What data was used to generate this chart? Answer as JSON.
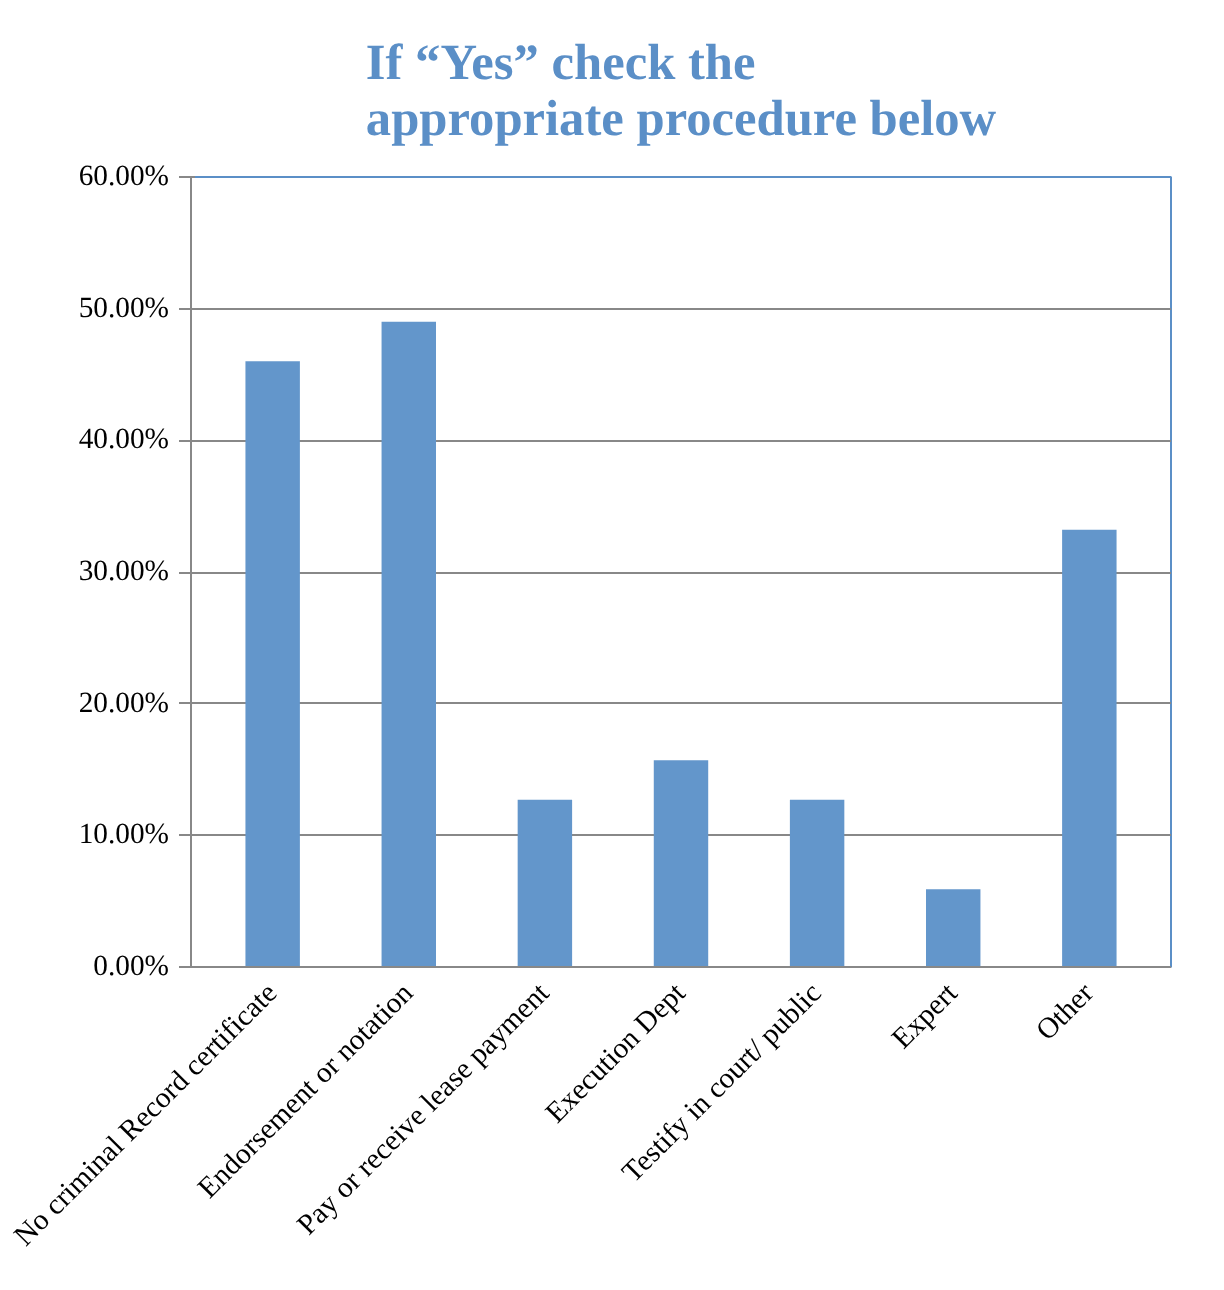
{
  "chart_data": {
    "type": "bar",
    "title": "If “Yes” check the appropriate procedure below",
    "categories": [
      "No criminal Record certificate",
      "Endorsement or notation",
      "Pay or receive lease payment",
      "Execution Dept",
      "Testify in court/ public",
      "Expert",
      "Other"
    ],
    "values": [
      46.0,
      49.0,
      12.7,
      15.7,
      12.7,
      5.9,
      33.2
    ],
    "color": "#6396cb",
    "ylim": [
      0,
      60
    ],
    "yticks": [
      {
        "value": 0,
        "label": "0.00%"
      },
      {
        "value": 10,
        "label": "10.00%"
      },
      {
        "value": 20,
        "label": "20.00%"
      },
      {
        "value": 30,
        "label": "30.00%"
      },
      {
        "value": 40,
        "label": "40.00%"
      },
      {
        "value": 50,
        "label": "50.00%"
      },
      {
        "value": 60,
        "label": "60.00%"
      }
    ],
    "grid": "y"
  }
}
